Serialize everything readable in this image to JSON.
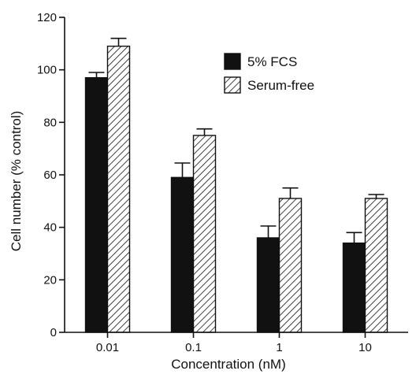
{
  "chart_data": {
    "type": "bar",
    "title": "",
    "xlabel": "Concentration (nM)",
    "ylabel": "Cell number (% control)",
    "categories": [
      "0.01",
      "0.1",
      "1",
      "10"
    ],
    "ylim": [
      0,
      120
    ],
    "yticks": [
      0,
      20,
      40,
      60,
      80,
      100,
      120
    ],
    "grid": false,
    "legend_position": "top-right",
    "series": [
      {
        "name": "5% FCS",
        "fill": "solid",
        "color": "#111111",
        "values": [
          97,
          59,
          36,
          34
        ],
        "errors": [
          2,
          5.5,
          4.5,
          4
        ]
      },
      {
        "name": "Serum-free",
        "fill": "hatched",
        "color": "#111111",
        "values": [
          109,
          75,
          51,
          51
        ],
        "errors": [
          3,
          2.5,
          4,
          1.5
        ]
      }
    ]
  }
}
